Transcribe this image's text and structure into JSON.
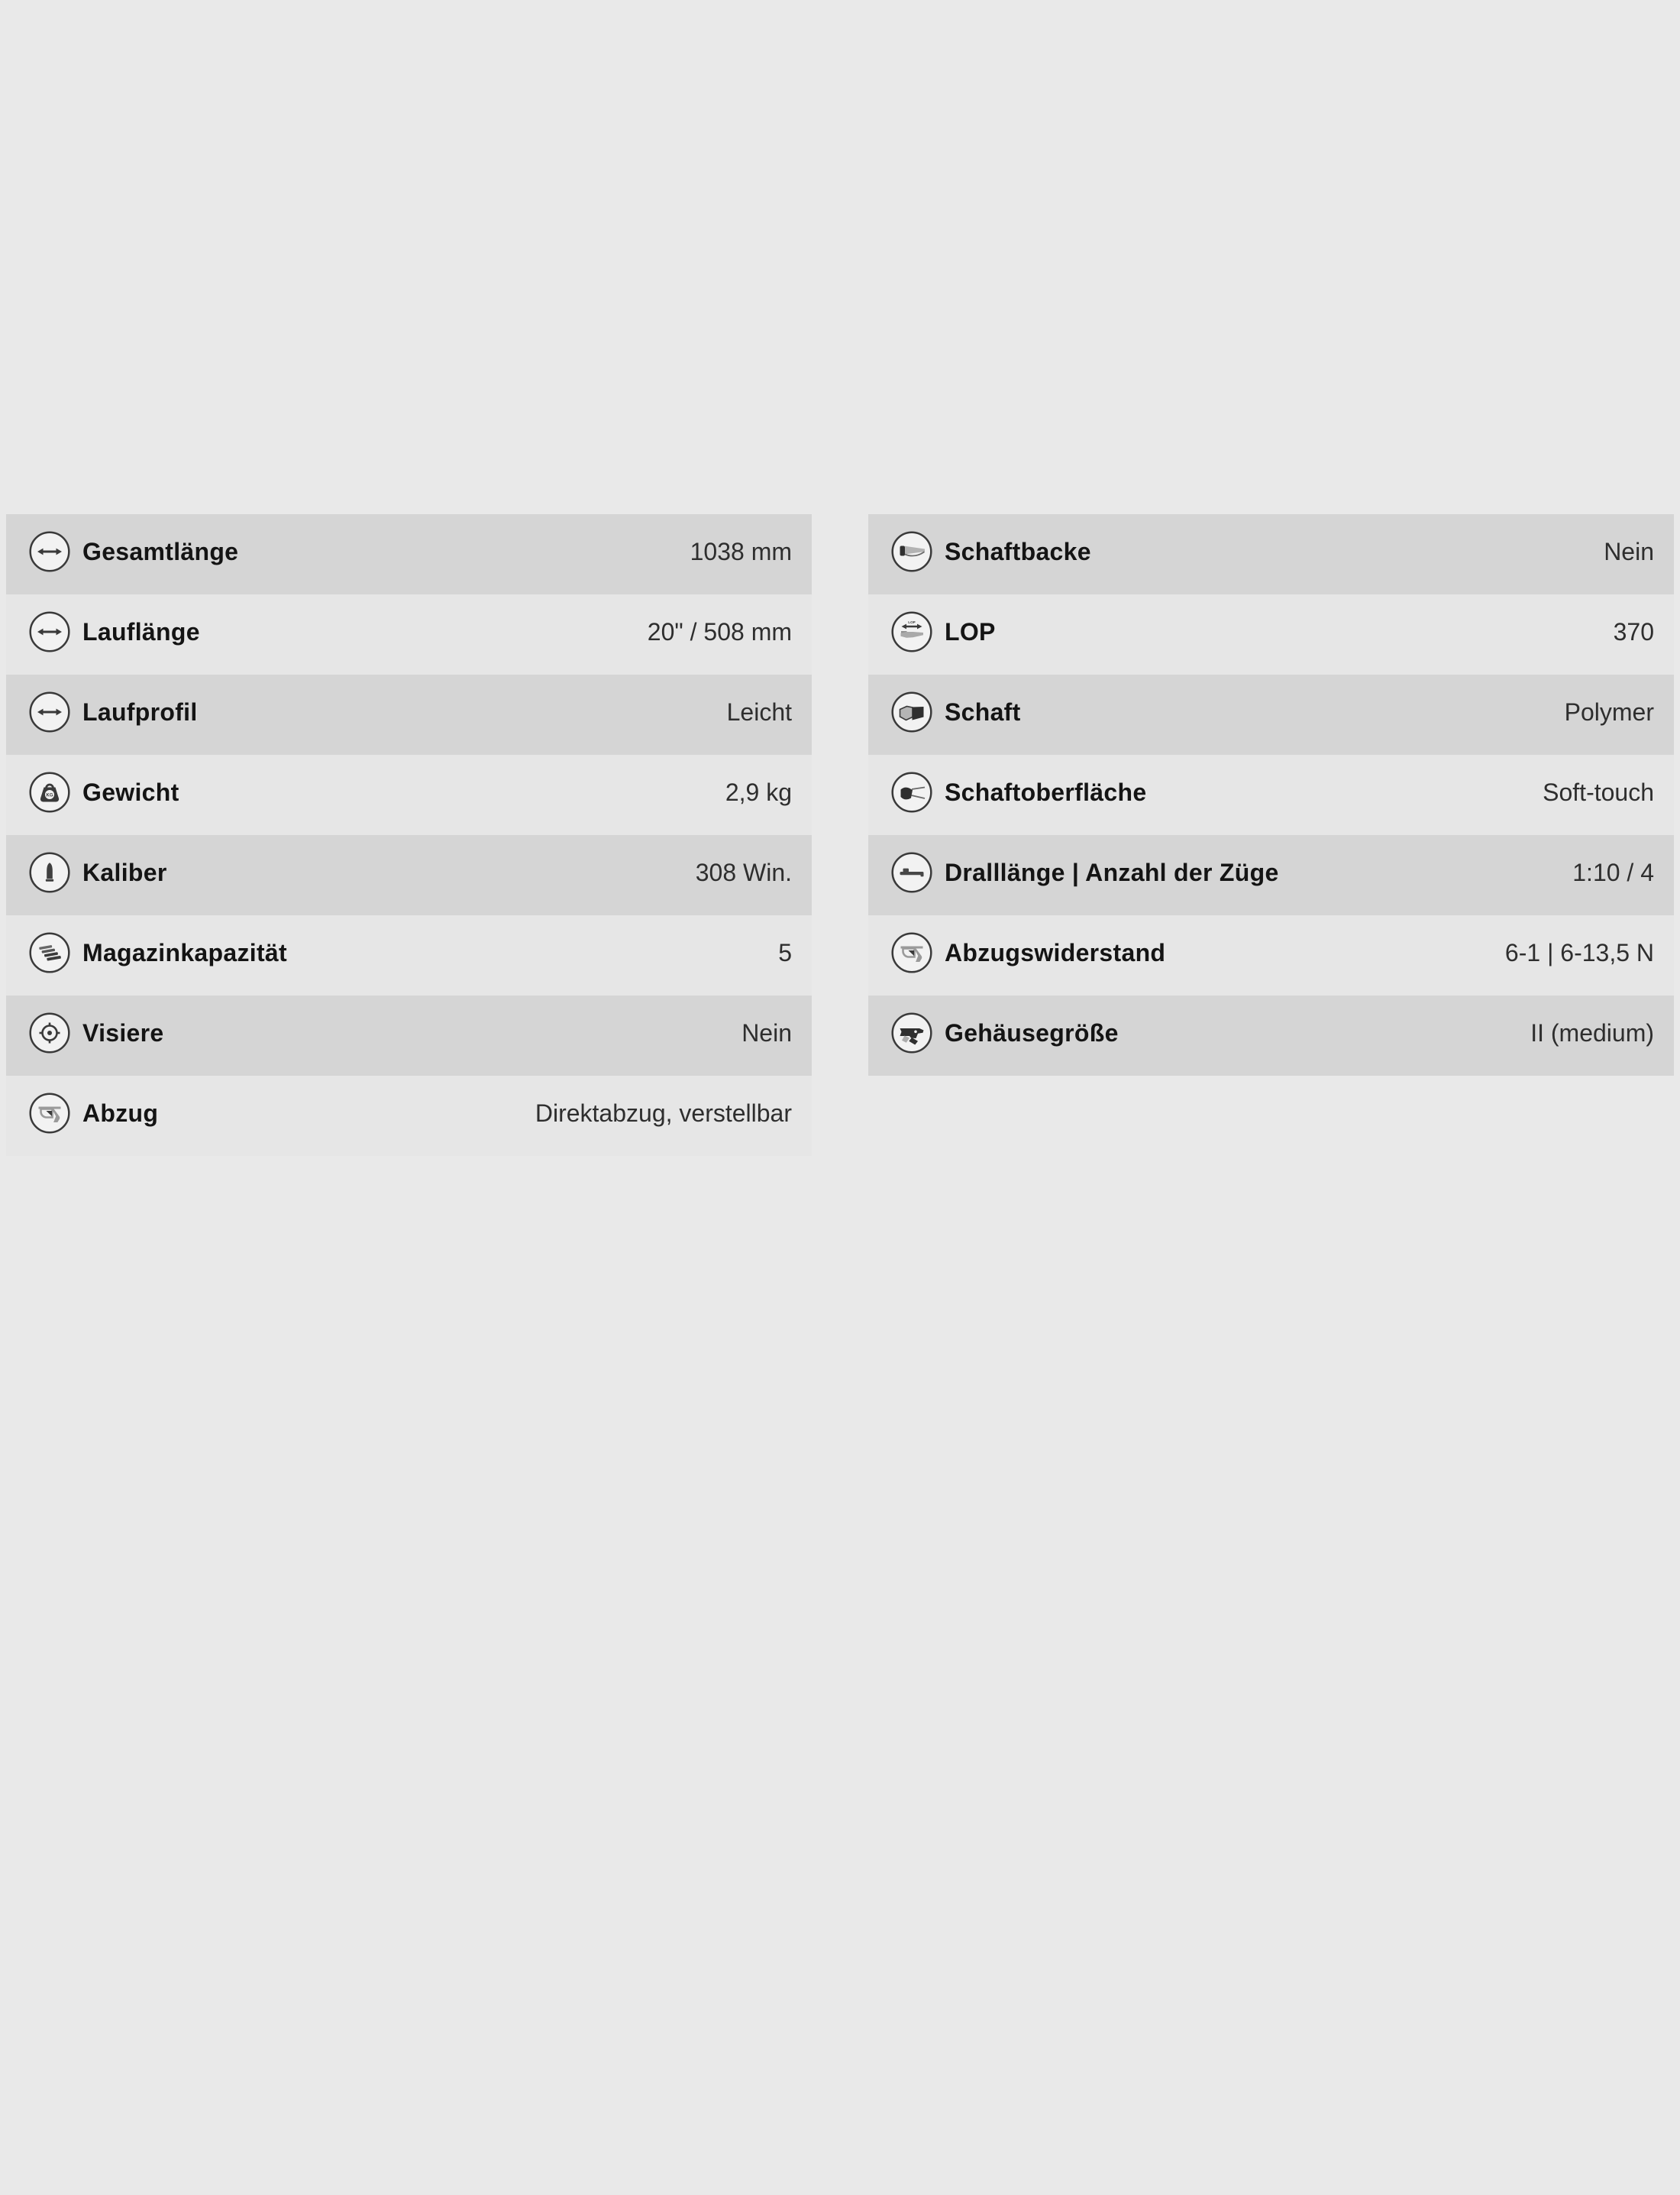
{
  "page": {
    "background_color": "#e9e9e9",
    "row_dark_color": "#d5d5d5",
    "row_light_color": "#e6e6e6"
  },
  "spec_table": {
    "columns": [
      {
        "side": "left",
        "rows": [
          {
            "icon": "length-arrow",
            "label": "Gesamtlänge",
            "value": "1038 mm"
          },
          {
            "icon": "length-arrow",
            "label": "Lauflänge",
            "value": "20\" / 508 mm"
          },
          {
            "icon": "length-arrow",
            "label": "Laufprofil",
            "value": "Leicht"
          },
          {
            "icon": "weight",
            "label": "Gewicht",
            "value": "2,9 kg"
          },
          {
            "icon": "cartridge",
            "label": "Kaliber",
            "value": "308 Win."
          },
          {
            "icon": "magazine",
            "label": "Magazinkapazität",
            "value": "5"
          },
          {
            "icon": "sight",
            "label": "Visiere",
            "value": "Nein"
          },
          {
            "icon": "trigger",
            "label": "Abzug",
            "value": "Direktabzug, verstellbar"
          }
        ]
      },
      {
        "side": "right",
        "rows": [
          {
            "icon": "cheekpiece",
            "label": "Schaftbacke",
            "value": "Nein"
          },
          {
            "icon": "lop",
            "label": "LOP",
            "value": "370"
          },
          {
            "icon": "stock",
            "label": "Schaft",
            "value": "Polymer"
          },
          {
            "icon": "stock-surface",
            "label": "Schaftoberfläche",
            "value": "Soft-touch"
          },
          {
            "icon": "barrel",
            "label": "Dralllänge | Anzahl der Züge",
            "value": "1:10 / 4"
          },
          {
            "icon": "trigger",
            "label": "Abzugswiderstand",
            "value": "6-1 | 6-13,5 N"
          },
          {
            "icon": "receiver",
            "label": "Gehäusegröße",
            "value": "II (medium)"
          }
        ]
      }
    ]
  }
}
